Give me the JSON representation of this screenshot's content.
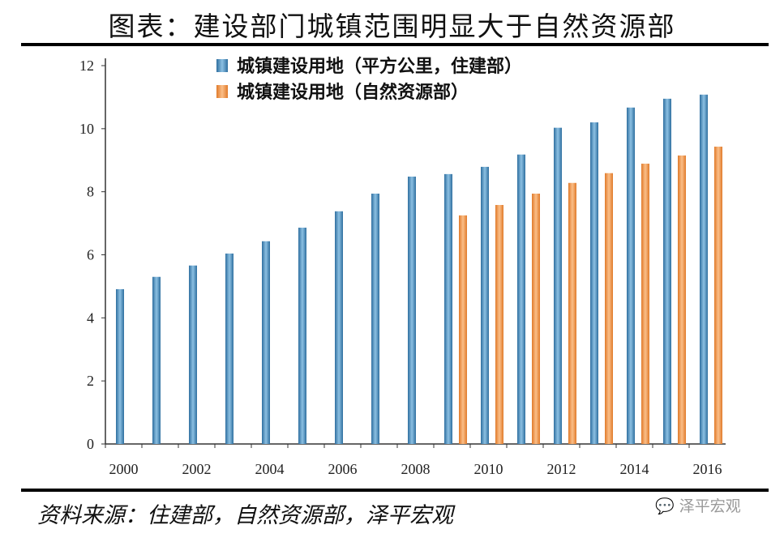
{
  "title": "图表：建设部门城镇范围明显大于自然资源部",
  "source": "资料来源：住建部，自然资源部，泽平宏观",
  "watermark": "泽平宏观",
  "chart_data": {
    "type": "bar",
    "categories": [
      "2000",
      "2001",
      "2002",
      "2003",
      "2004",
      "2005",
      "2006",
      "2007",
      "2008",
      "2009",
      "2010",
      "2011",
      "2012",
      "2013",
      "2014",
      "2015",
      "2016"
    ],
    "x_tick_labels": [
      "2000",
      "2002",
      "2004",
      "2006",
      "2008",
      "2010",
      "2012",
      "2014",
      "2016"
    ],
    "y_tick_labels": [
      "0",
      "2",
      "4",
      "6",
      "8",
      "10",
      "12"
    ],
    "ylim": [
      0,
      12
    ],
    "grid": false,
    "legend_position": "top-center",
    "series": [
      {
        "name": "城镇建设用地（平方公里，住建部）",
        "color": "#4a8bbf",
        "values": [
          4.91,
          5.3,
          5.66,
          6.04,
          6.43,
          6.86,
          7.38,
          7.94,
          8.48,
          8.56,
          8.79,
          9.18,
          10.03,
          10.2,
          10.67,
          10.95,
          11.08
        ]
      },
      {
        "name": "城镇建设用地（自然资源部）",
        "color": "#f0944a",
        "values": [
          null,
          null,
          null,
          null,
          null,
          null,
          null,
          null,
          null,
          7.25,
          7.58,
          7.94,
          8.28,
          8.59,
          8.89,
          9.15,
          9.43
        ]
      }
    ]
  }
}
